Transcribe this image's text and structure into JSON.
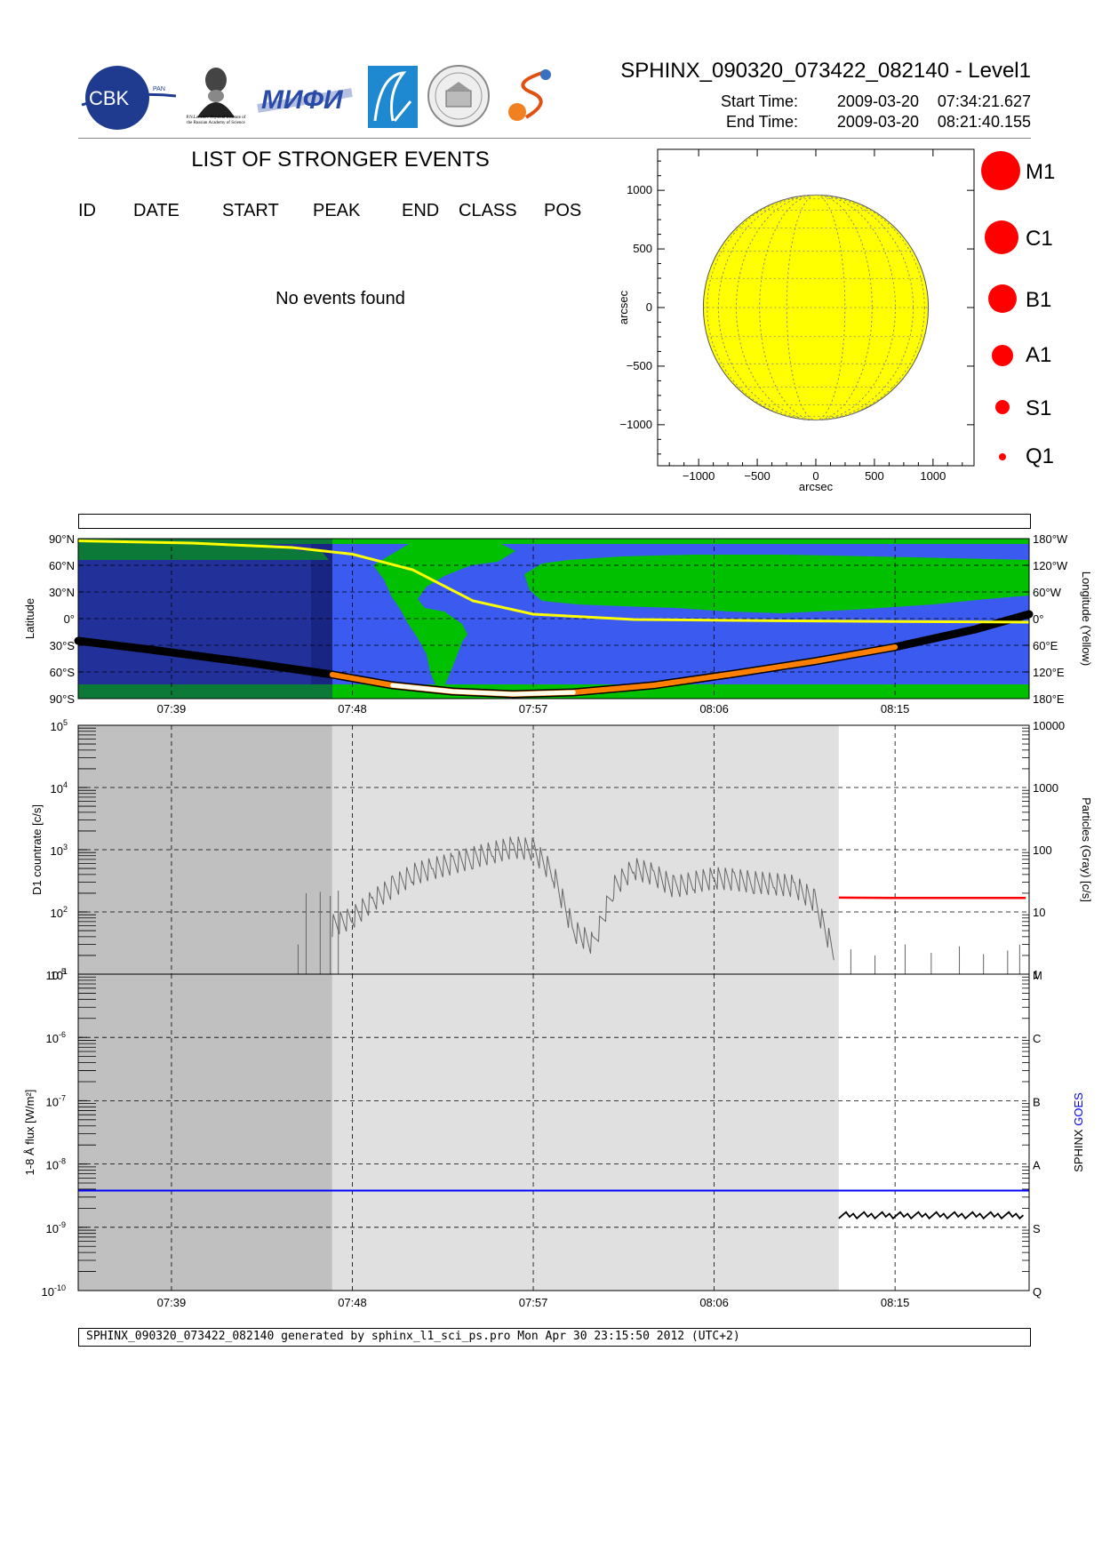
{
  "header": {
    "title": "SPHINX_090320_073422_082140 - Level1",
    "start_label": "Start Time:",
    "start_date": "2009-03-20",
    "start_time": "07:34:21.627",
    "end_label": "End Time:",
    "end_date": "2009-03-20",
    "end_time": "08:21:40.155"
  },
  "logos": {
    "cbk": "CBK",
    "cbk_sub": "PAN",
    "lebedev_caption": "P.N.Lebedev Physical Institute of the Russian Academy of Science",
    "mifi": "МИФИ"
  },
  "events": {
    "title": "LIST OF STRONGER EVENTS",
    "columns": [
      "ID",
      "DATE",
      "START",
      "PEAK",
      "END",
      "CLASS",
      "POS"
    ],
    "empty_text": "No events found"
  },
  "sun_map": {
    "xlabel": "arcsec",
    "ylabel": "arcsec",
    "x_ticks": [
      "-1000",
      "-500",
      "0",
      "500",
      "1000"
    ],
    "y_ticks": [
      "1000",
      "500",
      "0",
      "-500",
      "-1000"
    ],
    "disk_color": "#ffff00"
  },
  "size_legend": [
    {
      "label": "M1"
    },
    {
      "label": "C1"
    },
    {
      "label": "B1"
    },
    {
      "label": "A1"
    },
    {
      "label": "S1"
    },
    {
      "label": "Q1"
    }
  ],
  "orbit_panel": {
    "ylabel_left": "Latitude",
    "ylabel_right": "Longitude (Yellow)",
    "left_ticks": [
      "90°N",
      "60°N",
      "30°N",
      "0°",
      "30°S",
      "60°S",
      "90°S"
    ],
    "right_ticks": [
      "180°W",
      "120°W",
      "60°W",
      "0°",
      "60°E",
      "120°E",
      "180°E"
    ]
  },
  "time_ticks": [
    "07:39",
    "07:48",
    "07:57",
    "08:06",
    "08:15"
  ],
  "countrate_panel": {
    "ylabel_left": "D1 countrate [c/s]",
    "ylabel_right": "Particles (Gray) [c/s]",
    "left_ticks": [
      {
        "base": "10",
        "exp": "5"
      },
      {
        "base": "10",
        "exp": "4"
      },
      {
        "base": "10",
        "exp": "3"
      },
      {
        "base": "10",
        "exp": "2"
      },
      {
        "base": "10",
        "exp": "1"
      }
    ],
    "right_ticks": [
      "10000",
      "1000",
      "100",
      "10",
      "1"
    ]
  },
  "flux_panel": {
    "ylabel_left": "1-8 Å flux [W/m²]",
    "ylabel_right_a": "SPHINX",
    "ylabel_right_b": "GOES",
    "left_ticks": [
      {
        "base": "10",
        "exp": "-5"
      },
      {
        "base": "10",
        "exp": "-6"
      },
      {
        "base": "10",
        "exp": "-7"
      },
      {
        "base": "10",
        "exp": "-8"
      },
      {
        "base": "10",
        "exp": "-9"
      },
      {
        "base": "10",
        "exp": "-10"
      }
    ],
    "right_ticks": [
      "M",
      "C",
      "B",
      "A",
      "S",
      "Q"
    ]
  },
  "footer": {
    "text": "SPHINX_090320_073422_082140 generated by sphinx_l1_sci_ps.pro Mon Apr 30 23:15:50 2012 (UTC+2)"
  },
  "chart_data": [
    {
      "type": "scatter",
      "title": "",
      "xlabel": "arcsec",
      "ylabel": "arcsec",
      "xlim": [
        -1350,
        1350
      ],
      "ylim": [
        -1350,
        1350
      ],
      "disk_radius_arcsec": 960,
      "events": []
    },
    {
      "type": "line",
      "title": "",
      "ylabel": "Latitude",
      "ylabel_right": "Longitude (Yellow)",
      "xlim_minutes": [
        34.36,
        81.67
      ],
      "time_origin": "07:00",
      "series": [
        {
          "name": "Latitude",
          "color": "#000000",
          "points": [
            [
              34.36,
              -25
            ],
            [
              38,
              -35
            ],
            [
              43,
              -50
            ],
            [
              47,
              -63
            ],
            [
              50,
              -75
            ],
            [
              53,
              -82
            ],
            [
              56,
              -85
            ],
            [
              59,
              -83
            ],
            [
              63,
              -75
            ],
            [
              67,
              -62
            ],
            [
              71,
              -48
            ],
            [
              75,
              -32
            ],
            [
              79,
              -12
            ],
            [
              81.67,
              5
            ]
          ]
        },
        {
          "name": "Longitude",
          "color": "#ffff00",
          "points": [
            [
              34.36,
              175
            ],
            [
              40,
              170
            ],
            [
              45,
              160
            ],
            [
              48,
              145
            ],
            [
              51,
              110
            ],
            [
              54,
              40
            ],
            [
              57,
              10
            ],
            [
              62,
              -2
            ],
            [
              70,
              -5
            ],
            [
              81.67,
              -8
            ]
          ]
        }
      ]
    },
    {
      "type": "line",
      "title": "",
      "ylabel": "D1 countrate [c/s]",
      "yscale": "log",
      "ylim": [
        10,
        100000
      ],
      "right_ylim": [
        1,
        10000
      ],
      "xlim_minutes": [
        34.36,
        81.67
      ],
      "shaded_intervals_minutes": [
        [
          34.36,
          47
        ],
        [
          47,
          72.2
        ]
      ],
      "series": [
        {
          "name": "D1 countrate",
          "color": "#666666",
          "points": [
            [
              47,
              60
            ],
            [
              48,
              80
            ],
            [
              49,
              150
            ],
            [
              50,
              250
            ],
            [
              51,
              400
            ],
            [
              52,
              500
            ],
            [
              53,
              600
            ],
            [
              54,
              750
            ],
            [
              55,
              900
            ],
            [
              56,
              1100
            ],
            [
              57,
              1000
            ],
            [
              58,
              400
            ],
            [
              59,
              50
            ],
            [
              60,
              30
            ],
            [
              61,
              250
            ],
            [
              62,
              500
            ],
            [
              63,
              400
            ],
            [
              64,
              250
            ],
            [
              65,
              300
            ],
            [
              66,
              350
            ],
            [
              67,
              330
            ],
            [
              68,
              300
            ],
            [
              69,
              280
            ],
            [
              70,
              260
            ],
            [
              71,
              150
            ],
            [
              72,
              20
            ]
          ]
        },
        {
          "name": "Particles",
          "color": "#ff0000",
          "points": [
            [
              72.2,
              170
            ],
            [
              75,
              168
            ],
            [
              78,
              168
            ],
            [
              81.5,
              168
            ]
          ]
        }
      ]
    },
    {
      "type": "line",
      "title": "",
      "ylabel": "1-8 Å flux [W/m²]",
      "yscale": "log",
      "ylim": [
        1e-10,
        1e-05
      ],
      "xlim_minutes": [
        34.36,
        81.67
      ],
      "shaded_intervals_minutes": [
        [
          34.36,
          47
        ],
        [
          47,
          72.2
        ]
      ],
      "series": [
        {
          "name": "GOES",
          "color": "#0000ff",
          "points": [
            [
              34.36,
              3.8e-09
            ],
            [
              81.67,
              3.8e-09
            ]
          ]
        },
        {
          "name": "SPHINX",
          "color": "#000000",
          "points": [
            [
              72.2,
              1.6e-09
            ],
            [
              75,
              1.6e-09
            ],
            [
              78,
              1.6e-09
            ],
            [
              81.5,
              1.5e-09
            ]
          ]
        }
      ]
    }
  ]
}
